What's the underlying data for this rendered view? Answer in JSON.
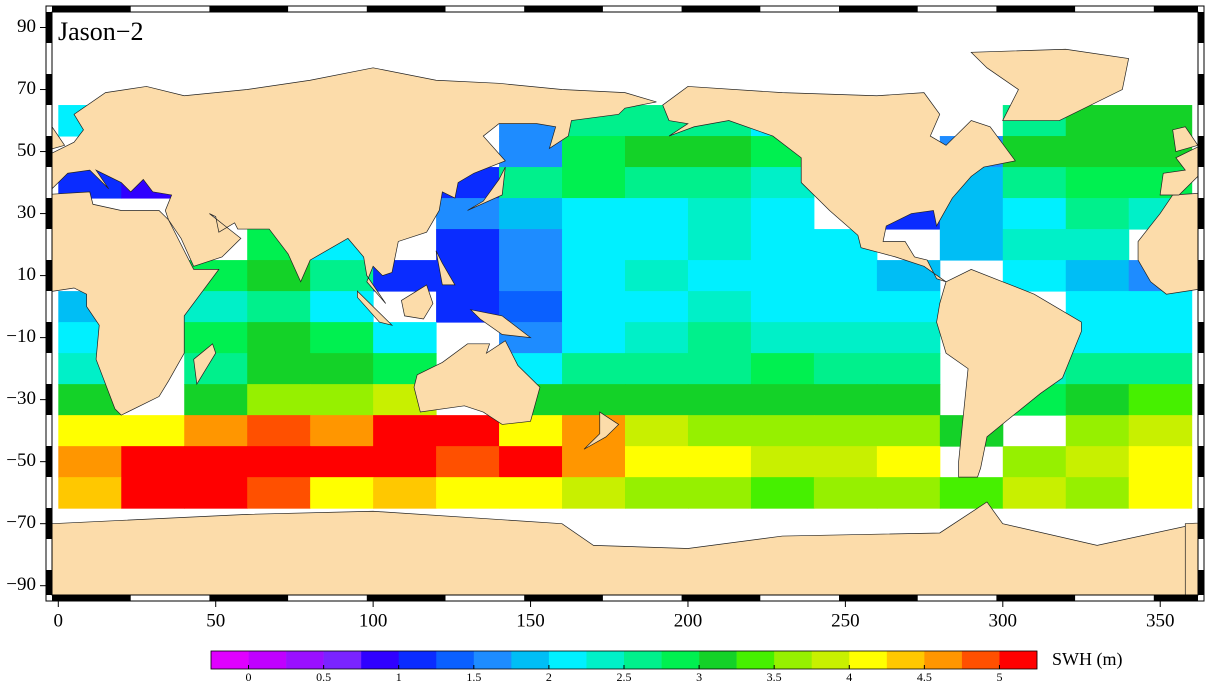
{
  "map": {
    "title": "Jason−2",
    "lon_range": [
      -2,
      362
    ],
    "lat_range": [
      -93,
      95
    ],
    "lon_ticks": [
      0,
      50,
      100,
      150,
      200,
      250,
      300,
      350
    ],
    "lat_ticks": [
      90,
      70,
      50,
      30,
      10,
      {
        "value": -10,
        "label": "−10"
      },
      {
        "value": -30,
        "label": "−30"
      },
      {
        "value": -50,
        "label": "−50"
      },
      {
        "value": -70,
        "label": "−70"
      },
      {
        "value": -90,
        "label": "−90"
      }
    ],
    "swh": {
      "lon_centers": [
        10,
        30,
        50,
        70,
        90,
        110,
        130,
        150,
        170,
        190,
        210,
        230,
        250,
        270,
        290,
        310,
        330,
        350
      ],
      "lat_centers": [
        60,
        50,
        40,
        30,
        20,
        10,
        0,
        -10,
        -20,
        -30,
        -40,
        -50,
        -60
      ],
      "values": [
        [
          2.0,
          null,
          null,
          null,
          null,
          null,
          null,
          1.5,
          2.5,
          2.5,
          2.5,
          2.2,
          null,
          null,
          null,
          2.5,
          3.0,
          3.0
        ],
        [
          null,
          null,
          null,
          null,
          null,
          null,
          null,
          1.5,
          2.8,
          3.0,
          3.0,
          2.8,
          null,
          null,
          1.5,
          3.0,
          3.2,
          3.2
        ],
        [
          1.0,
          0.8,
          null,
          null,
          null,
          null,
          1.2,
          2.5,
          2.8,
          2.7,
          2.6,
          2.4,
          null,
          null,
          1.8,
          2.6,
          2.8,
          2.8
        ],
        [
          null,
          null,
          null,
          null,
          null,
          null,
          1.5,
          1.8,
          2.0,
          2.2,
          2.3,
          2.0,
          null,
          1.2,
          1.8,
          2.2,
          2.5,
          2.4
        ],
        [
          null,
          null,
          null,
          2.8,
          2.2,
          null,
          1.2,
          1.6,
          2.0,
          2.2,
          2.3,
          2.2,
          2.0,
          null,
          1.8,
          2.3,
          2.4,
          null
        ],
        [
          null,
          null,
          2.8,
          3.0,
          2.5,
          1.2,
          1.0,
          1.5,
          2.2,
          2.3,
          2.2,
          2.1,
          2.0,
          1.8,
          null,
          2.2,
          1.8,
          1.6
        ],
        [
          1.8,
          null,
          2.4,
          2.5,
          2.2,
          null,
          1.0,
          1.3,
          2.0,
          2.2,
          2.3,
          2.2,
          2.2,
          2.0,
          null,
          null,
          2.0,
          2.0
        ],
        [
          2.0,
          null,
          2.8,
          3.0,
          2.8,
          2.2,
          null,
          1.5,
          2.2,
          2.4,
          2.5,
          2.4,
          2.4,
          2.3,
          null,
          null,
          2.2,
          2.2
        ],
        [
          2.4,
          null,
          2.6,
          3.2,
          3.0,
          2.8,
          null,
          2.0,
          2.6,
          2.6,
          2.7,
          2.8,
          2.7,
          2.6,
          null,
          2.4,
          2.5,
          2.6
        ],
        [
          3.0,
          null,
          3.2,
          3.6,
          3.6,
          3.8,
          null,
          3.0,
          3.2,
          3.2,
          3.0,
          3.1,
          3.2,
          3.2,
          null,
          2.8,
          3.2,
          3.4
        ],
        [
          4.0,
          4.2,
          4.6,
          4.8,
          4.6,
          5.0,
          5.1,
          4.2,
          4.5,
          3.8,
          3.6,
          3.5,
          3.6,
          3.6,
          3.2,
          null,
          3.6,
          3.8
        ],
        [
          4.6,
          5.1,
          5.1,
          5.0,
          5.1,
          5.0,
          4.8,
          5.0,
          4.6,
          4.2,
          4.0,
          3.9,
          3.8,
          4.0,
          null,
          3.5,
          3.8,
          4.2
        ],
        [
          4.4,
          5.1,
          5.0,
          4.8,
          4.2,
          4.4,
          4.0,
          4.0,
          3.8,
          3.6,
          3.5,
          3.4,
          3.6,
          3.6,
          3.4,
          3.8,
          3.6,
          4.0
        ]
      ]
    },
    "colorbar": {
      "range": [
        -0.25,
        5.25
      ],
      "colors": [
        "#e000ff",
        "#c000ff",
        "#9a10ff",
        "#7a24ff",
        "#3000ff",
        "#0a2cff",
        "#0a60ff",
        "#1e8cff",
        "#00bef5",
        "#00f0ff",
        "#00f0c8",
        "#00f08c",
        "#00f050",
        "#14d228",
        "#46f000",
        "#96f000",
        "#c8f000",
        "#ffff00",
        "#ffc800",
        "#ff9600",
        "#ff5000",
        "#ff0000"
      ],
      "ticks": [
        0,
        0.5,
        1,
        1.5,
        2,
        2.5,
        3,
        3.5,
        4,
        4.5,
        5
      ],
      "label": "SWH (m)"
    }
  }
}
